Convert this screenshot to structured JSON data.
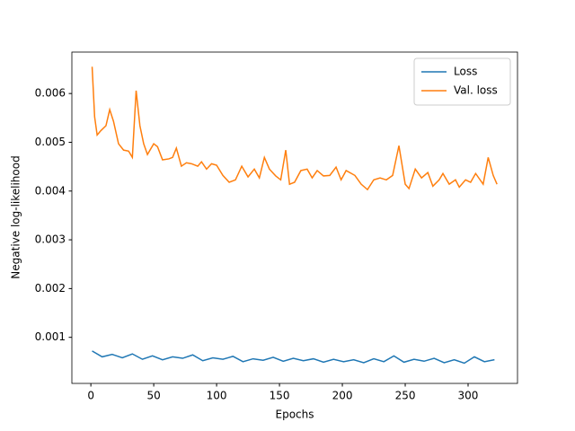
{
  "chart_data": {
    "type": "line",
    "xlabel": "Epochs",
    "ylabel": "Negative log-likelihood",
    "xlim": [
      -15.1,
      339.3
    ],
    "xticks": [
      0,
      50,
      100,
      150,
      200,
      250,
      300
    ],
    "ylim": [
      5.5e-05,
      0.00685
    ],
    "yticks": [
      0.001,
      0.002,
      0.003,
      0.004,
      0.005,
      0.006
    ],
    "legend": "upper right",
    "grid": false,
    "series": [
      {
        "name": "Loss",
        "color": "#1f77b4",
        "x": [
          1,
          9,
          17,
          25,
          33,
          41,
          49,
          57,
          65,
          73,
          81,
          89,
          97,
          105,
          113,
          121,
          129,
          137,
          145,
          153,
          161,
          169,
          177,
          185,
          193,
          201,
          209,
          217,
          225,
          233,
          241,
          249,
          257,
          265,
          273,
          281,
          289,
          297,
          305,
          313,
          321
        ],
        "values": [
          0.00072,
          0.0006,
          0.00065,
          0.00058,
          0.00066,
          0.00055,
          0.00062,
          0.00054,
          0.0006,
          0.00057,
          0.00064,
          0.00052,
          0.00058,
          0.00055,
          0.00061,
          0.0005,
          0.00056,
          0.00053,
          0.00059,
          0.00051,
          0.00057,
          0.00052,
          0.00056,
          0.00049,
          0.00055,
          0.0005,
          0.00054,
          0.00048,
          0.00056,
          0.0005,
          0.00062,
          0.00049,
          0.00055,
          0.00051,
          0.00057,
          0.00048,
          0.00054,
          0.00047,
          0.0006,
          0.0005,
          0.00054
        ]
      },
      {
        "name": "Val. loss",
        "color": "#ff7f0e",
        "x": [
          1,
          3,
          5,
          8,
          12,
          15,
          18,
          22,
          26,
          30,
          33,
          36,
          39,
          42,
          45,
          50,
          53,
          57,
          62,
          65,
          68,
          72,
          76,
          80,
          85,
          88,
          92,
          96,
          100,
          105,
          110,
          115,
          120,
          125,
          130,
          134,
          138,
          142,
          147,
          151,
          155,
          158,
          162,
          167,
          172,
          176,
          180,
          185,
          190,
          195,
          199,
          203,
          210,
          215,
          220,
          225,
          230,
          235,
          240,
          245,
          250,
          253,
          258,
          263,
          268,
          272,
          277,
          280,
          285,
          290,
          293,
          298,
          302,
          306,
          312,
          316,
          320,
          323
        ],
        "values": [
          0.00655,
          0.00552,
          0.00515,
          0.00524,
          0.00534,
          0.00567,
          0.00543,
          0.00497,
          0.00484,
          0.00482,
          0.00469,
          0.00606,
          0.00534,
          0.00497,
          0.00475,
          0.00497,
          0.00491,
          0.00464,
          0.00466,
          0.00469,
          0.00488,
          0.00451,
          0.00458,
          0.00456,
          0.00451,
          0.0046,
          0.00445,
          0.00456,
          0.00453,
          0.00432,
          0.00418,
          0.00423,
          0.00451,
          0.00429,
          0.00445,
          0.00427,
          0.00469,
          0.00445,
          0.00431,
          0.00423,
          0.00484,
          0.00414,
          0.00418,
          0.00442,
          0.00445,
          0.00427,
          0.00442,
          0.00431,
          0.00432,
          0.00449,
          0.00423,
          0.00442,
          0.00432,
          0.00414,
          0.00403,
          0.00423,
          0.00427,
          0.00423,
          0.00432,
          0.00493,
          0.00414,
          0.00405,
          0.00445,
          0.00427,
          0.00438,
          0.0041,
          0.00423,
          0.00436,
          0.00414,
          0.00423,
          0.00408,
          0.00423,
          0.00418,
          0.00436,
          0.00414,
          0.00469,
          0.00432,
          0.00414
        ]
      }
    ]
  }
}
